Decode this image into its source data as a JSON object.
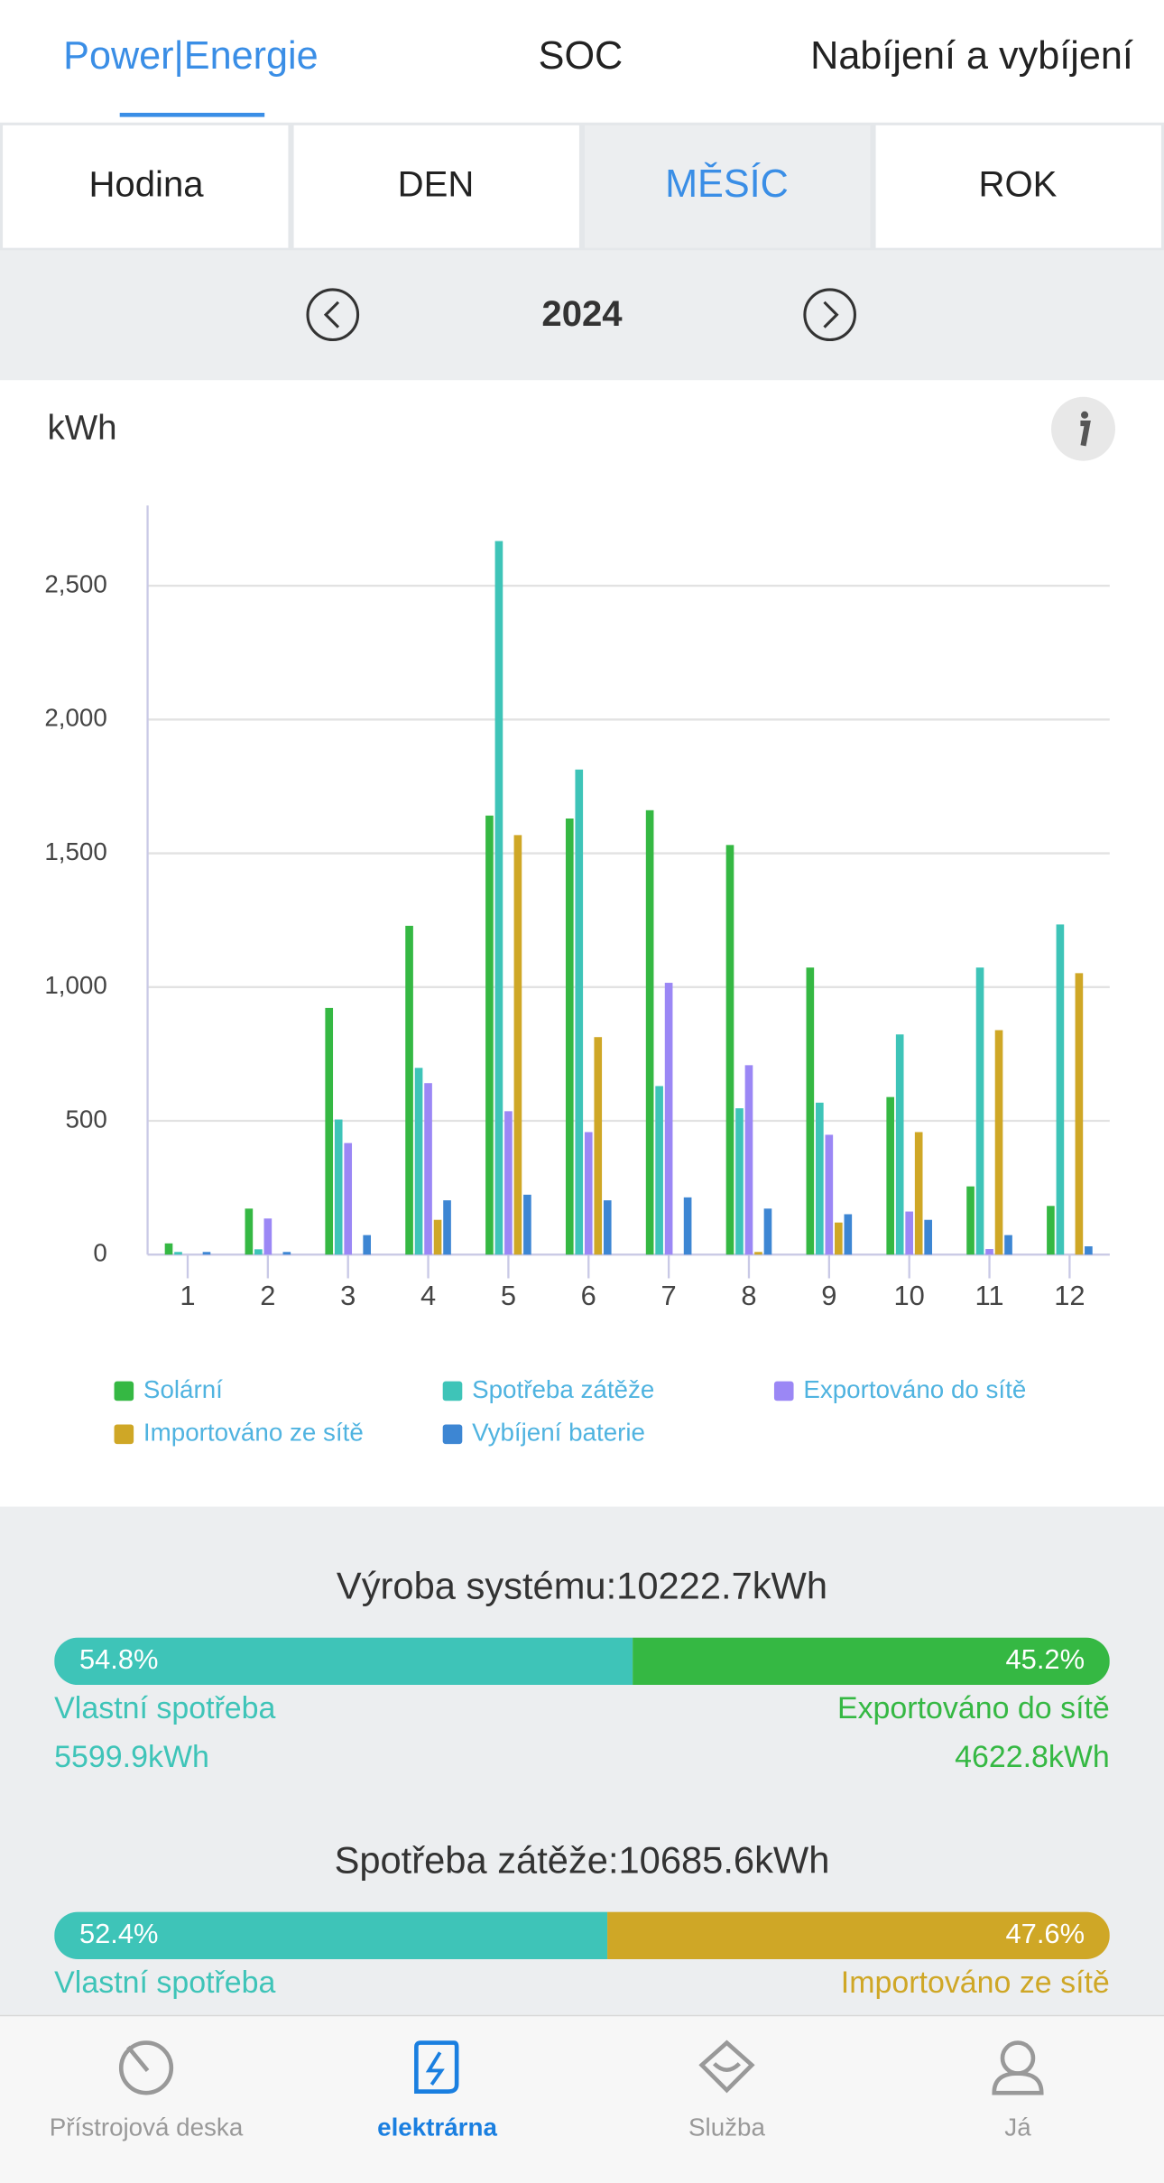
{
  "tabs": [
    "Power|Energie",
    "SOC",
    "Nabíjení a vybíjení"
  ],
  "period_tabs": [
    "Hodina",
    "DEN",
    "MĚSÍC",
    "ROK"
  ],
  "year": "2024",
  "chart_data": {
    "type": "bar",
    "y_label": "kWh",
    "categories": [
      "1",
      "2",
      "3",
      "4",
      "5",
      "6",
      "7",
      "8",
      "9",
      "10",
      "11",
      "12"
    ],
    "series": [
      {
        "name": "Solární",
        "color": "#35b843",
        "values": [
          42,
          172,
          922,
          1229,
          1641,
          1630,
          1661,
          1531,
          1073,
          589,
          255,
          182
        ]
      },
      {
        "name": "Spotřeba zátěže",
        "color": "#3ec4b8",
        "values": [
          10,
          20,
          505,
          698,
          2667,
          1813,
          630,
          547,
          568,
          823,
          1073,
          1234
        ]
      },
      {
        "name": "Exportováno do sítě",
        "color": "#9b87f5",
        "values": [
          0,
          135,
          417,
          641,
          536,
          458,
          1016,
          708,
          448,
          161,
          21,
          0
        ]
      },
      {
        "name": "Importováno ze sítě",
        "color": "#cfa726",
        "values": [
          0,
          0,
          0,
          130,
          1568,
          813,
          0,
          10,
          120,
          458,
          839,
          1052
        ]
      },
      {
        "name": "Vybíjení baterie",
        "color": "#3d86d3",
        "values": [
          10,
          10,
          73,
          203,
          224,
          203,
          214,
          172,
          151,
          130,
          73,
          31
        ]
      }
    ],
    "ylim": [
      0,
      2800
    ],
    "yticks": [
      0,
      500,
      {
        "value": 1000,
        "label": "1,000"
      },
      {
        "value": 1500,
        "label": "1,500"
      },
      {
        "value": 2000,
        "label": "2,000"
      },
      {
        "value": 2500,
        "label": "2,500"
      }
    ],
    "grid": true
  },
  "summary": [
    {
      "title": "Výroba systému:10222.7kWh",
      "shares": [
        54.8,
        45.2
      ],
      "share_labels": [
        "54.8%",
        "45.2%"
      ],
      "colors": [
        "#3ec4b8",
        "#35b843"
      ],
      "labels": [
        "Vlastní spotřeba",
        "Exportováno do sítě"
      ],
      "amounts": [
        "5599.9kWh",
        "4622.8kWh"
      ]
    },
    {
      "title": "Spotřeba zátěže:10685.6kWh",
      "shares": [
        52.4,
        47.6
      ],
      "share_labels": [
        "52.4%",
        "47.6%"
      ],
      "colors": [
        "#3ec4b8",
        "#cfa726"
      ],
      "labels": [
        "Vlastní spotřeba",
        "Importováno ze sítě"
      ]
    }
  ],
  "nav": [
    "Přístrojová deska",
    "elektrárna",
    "Služba",
    "Já"
  ]
}
